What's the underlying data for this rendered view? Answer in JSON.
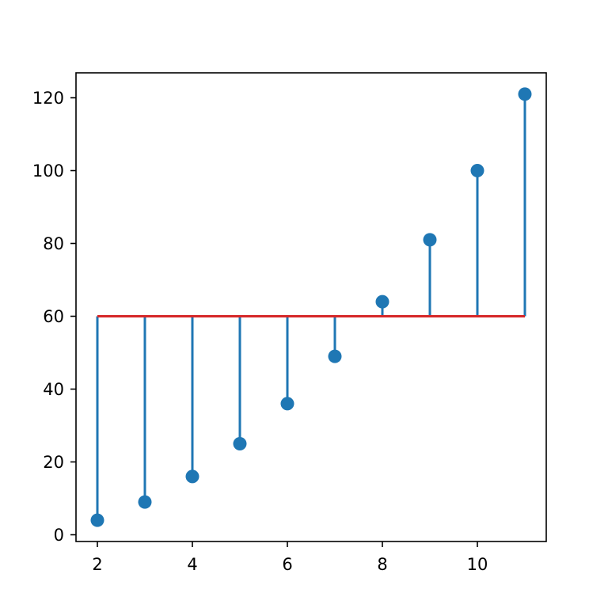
{
  "chart_data": {
    "type": "stem",
    "x": [
      2,
      3,
      4,
      5,
      6,
      7,
      8,
      9,
      10,
      11
    ],
    "y": [
      4,
      9,
      16,
      25,
      36,
      49,
      64,
      81,
      100,
      121
    ],
    "bottom": 60,
    "xlim": [
      1.55,
      11.45
    ],
    "ylim": [
      -1.85,
      126.85
    ],
    "xticks": [
      2,
      4,
      6,
      8,
      10
    ],
    "yticks": [
      0,
      20,
      40,
      60,
      80,
      100,
      120
    ],
    "title": "",
    "xlabel": "",
    "ylabel": "",
    "grid": false,
    "legend": "none",
    "colors": {
      "stem": "#1f77b4",
      "marker": "#1f77b4",
      "baseline": "#d62728",
      "axes": "#000000"
    }
  }
}
